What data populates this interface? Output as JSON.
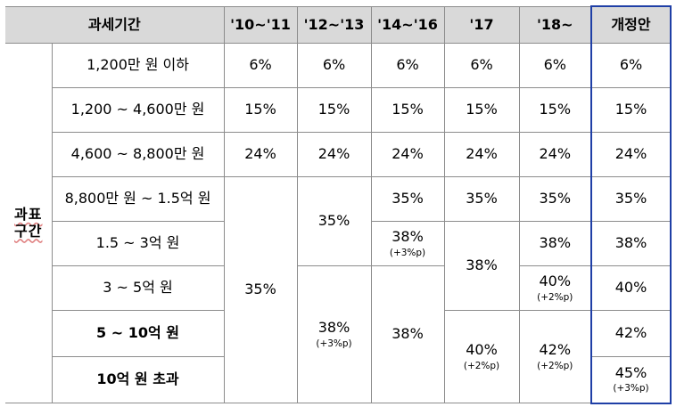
{
  "header": {
    "period_label": "과세기간",
    "columns": [
      "'10~'11",
      "'12~'13",
      "'14~'16",
      "'17",
      "'18~",
      "개정안"
    ]
  },
  "group_label": [
    "과표",
    "구간"
  ],
  "brackets": [
    "1,200만 원 이하",
    "1,200  ~  4,600만 원",
    "4,600  ~  8,800만 원",
    "8,800만 원 ~ 1.5억 원",
    "1.5  ~  3억 원",
    "3  ~  5억 원",
    "5  ~  10억 원",
    "10억 원 초과"
  ],
  "cells": {
    "r1": [
      "6%",
      "6%",
      "6%",
      "6%",
      "6%",
      "6%"
    ],
    "r2": [
      "15%",
      "15%",
      "15%",
      "15%",
      "15%",
      "15%"
    ],
    "r3": [
      "24%",
      "24%",
      "24%",
      "24%",
      "24%",
      "24%"
    ],
    "c1011_r4_8": "35%",
    "c1213_r4_5": "35%",
    "c1213_r6_8": "38%",
    "c1213_r6_8_note": "(+3%p)",
    "c1416_r4": "35%",
    "c1416_r5": "38%",
    "c1416_r5_note": "(+3%p)",
    "c1416_r6_8": "38%",
    "c17_r4": "35%",
    "c17_r5_6": "38%",
    "c17_r7_8": "40%",
    "c17_r7_8_note": "(+2%p)",
    "c18_r4": "35%",
    "c18_r5": "38%",
    "c18_r6": "40%",
    "c18_r6_note": "(+2%p)",
    "c18_r7_8": "42%",
    "c18_r7_8_note": "(+2%p)",
    "new_r4": "35%",
    "new_r5": "38%",
    "new_r6": "40%",
    "new_r7": "42%",
    "new_r8": "45%",
    "new_r8_note": "(+3%p)"
  }
}
